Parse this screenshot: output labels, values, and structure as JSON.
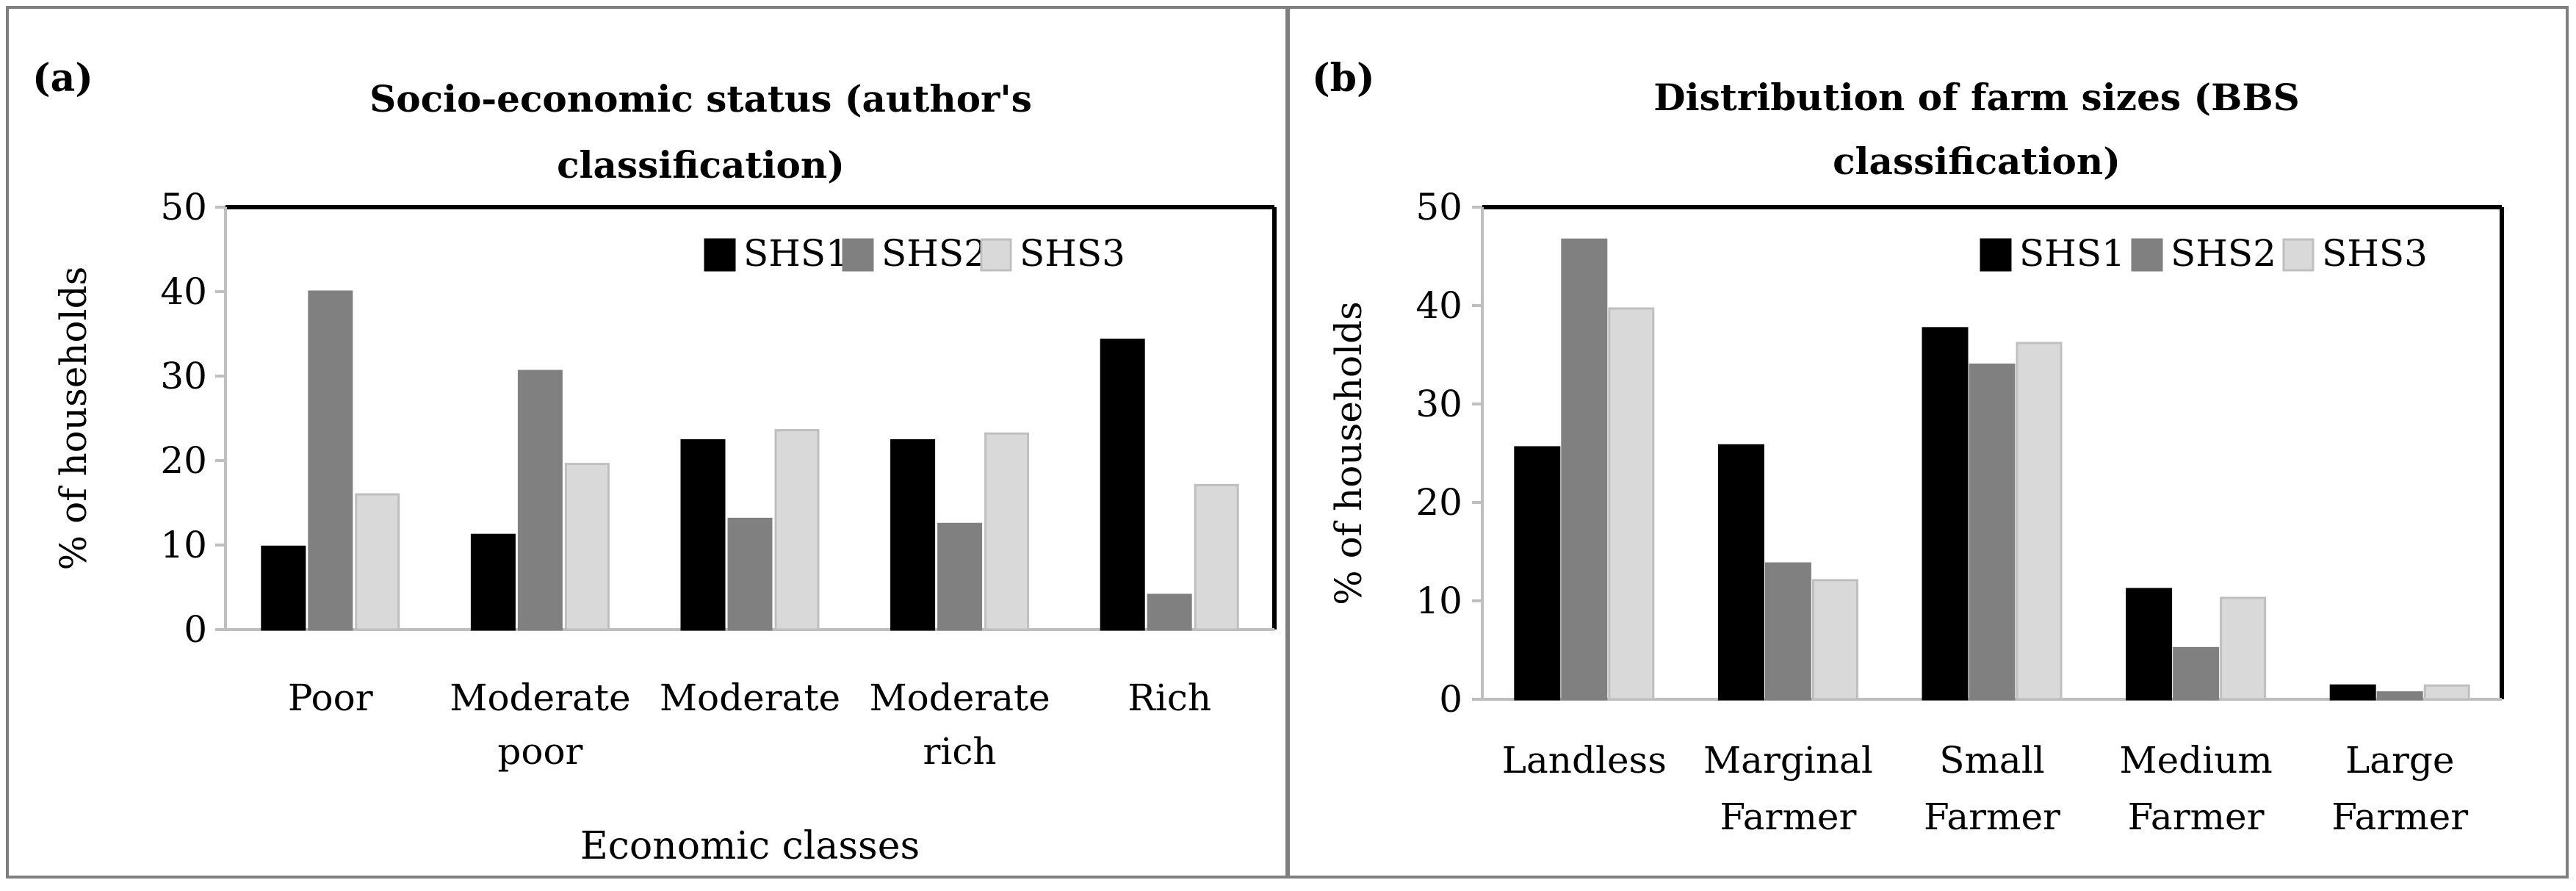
{
  "chart_data": [
    {
      "panel_label": "(a)",
      "type": "bar",
      "title": "Socio-economic status (author's classification)",
      "title_lines": [
        "Socio-economic status (author's",
        "classification)"
      ],
      "xlabel": "Economic classes",
      "ylabel": "% of households",
      "ylim": [
        0,
        50
      ],
      "yticks": [
        "0",
        "10",
        "20",
        "30",
        "40",
        "50"
      ],
      "categories": [
        "Poor",
        "Moderate poor",
        "Moderate",
        "Moderate rich",
        "Rich"
      ],
      "category_lines": [
        [
          "Poor"
        ],
        [
          "Moderate",
          "poor"
        ],
        [
          "Moderate"
        ],
        [
          "Moderate",
          "rich"
        ],
        [
          "Rich"
        ]
      ],
      "legend_position": "top-right",
      "grid": false,
      "series": [
        {
          "name": "SHS1",
          "color": "#000000",
          "values": [
            9.8,
            11.2,
            22.4,
            22.4,
            34.3
          ]
        },
        {
          "name": "SHS2",
          "color": "#808080",
          "values": [
            40.0,
            30.6,
            13.1,
            12.5,
            4.1
          ]
        },
        {
          "name": "SHS3",
          "color": "#d9d9d9",
          "values": [
            16.0,
            19.6,
            23.6,
            23.2,
            17.1
          ]
        }
      ]
    },
    {
      "panel_label": "(b)",
      "type": "bar",
      "title": "Distribution of farm sizes (BBS classification)",
      "title_lines": [
        "Distribution of farm sizes (BBS",
        "classification)"
      ],
      "xlabel": "",
      "ylabel": "% of households",
      "ylim": [
        0,
        50
      ],
      "yticks": [
        "0",
        "10",
        "20",
        "30",
        "40",
        "50"
      ],
      "categories": [
        "Landless",
        "Marginal Farmer",
        "Small Farmer",
        "Medium Farmer",
        "Large Farmer"
      ],
      "category_lines": [
        [
          "Landless"
        ],
        [
          "Marginal",
          "Farmer"
        ],
        [
          "Small",
          "Farmer"
        ],
        [
          "Medium",
          "Farmer"
        ],
        [
          "Large",
          "Farmer"
        ]
      ],
      "legend_position": "top-right",
      "grid": false,
      "series": [
        {
          "name": "SHS1",
          "color": "#000000",
          "values": [
            25.6,
            25.8,
            37.7,
            11.2,
            1.4
          ]
        },
        {
          "name": "SHS2",
          "color": "#808080",
          "values": [
            46.7,
            13.8,
            34.0,
            5.2,
            0.7
          ]
        },
        {
          "name": "SHS3",
          "color": "#d9d9d9",
          "values": [
            39.7,
            12.1,
            36.2,
            10.3,
            1.4
          ]
        }
      ]
    }
  ]
}
